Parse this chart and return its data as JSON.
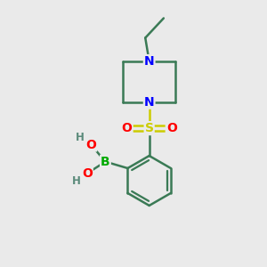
{
  "background_color": "#eaeaea",
  "bond_color": "#3a7a55",
  "bond_width": 1.8,
  "atom_colors": {
    "N": "#0000ff",
    "O": "#ff0000",
    "S": "#cccc00",
    "B": "#00aa00",
    "C": "#3a7a55",
    "H": "#5a8a7a"
  },
  "font_size_atoms": 10,
  "font_size_H": 8.5
}
